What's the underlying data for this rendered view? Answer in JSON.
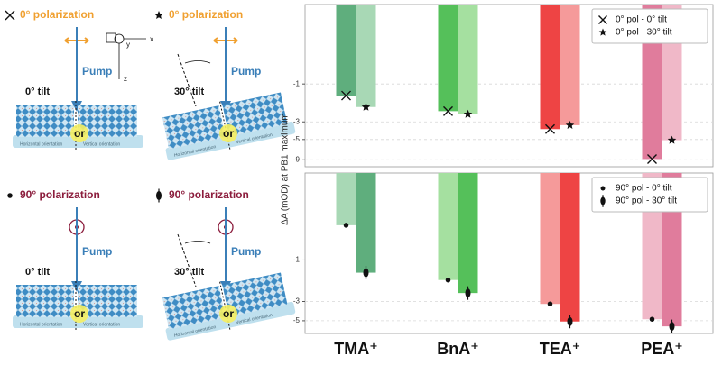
{
  "chart_data": [
    {
      "type": "bar",
      "ylabel": "ΔA (mOD) at PB1 maximum",
      "yscale": "symlog",
      "ylim": [
        -11,
        0
      ],
      "yticks": [
        -1,
        -3,
        -5,
        -9
      ],
      "grid": true,
      "legend": "upper right",
      "series": [
        {
          "name": "0° pol - 0° tilt",
          "marker": "x",
          "colors": [
            "#5fae7d",
            "#55c05a",
            "#ee4444",
            "#e07c9c"
          ],
          "values": [
            -1.4,
            -2.2,
            -3.7,
            -8.8
          ]
        },
        {
          "name": "0° pol - 30° tilt",
          "marker": "star",
          "colors": [
            "#a8d8b5",
            "#a5e0a0",
            "#f59a9a",
            "#f0b8c8"
          ],
          "values": [
            -1.95,
            -2.4,
            -3.3,
            -5.1
          ]
        }
      ]
    },
    {
      "type": "bar",
      "yscale": "symlog",
      "ylim": [
        -7,
        0
      ],
      "yticks": [
        -1,
        -3,
        -5
      ],
      "grid": true,
      "legend": "upper right",
      "categories": [
        "TMA⁺",
        "BnA⁺",
        "TEA⁺",
        "PEA⁺"
      ],
      "series": [
        {
          "name": "90° pol - 0° tilt",
          "marker": "dot",
          "colors": [
            "#a8d8b5",
            "#a5e0a0",
            "#f59a9a",
            "#f0b8c8"
          ],
          "values": [
            -0.6,
            -1.7,
            -3.2,
            -4.8
          ]
        },
        {
          "name": "90° pol - 30° tilt",
          "marker": "diamond",
          "colors": [
            "#5fae7d",
            "#55c05a",
            "#ee4444",
            "#e07c9c"
          ],
          "values": [
            -1.4,
            -2.4,
            -5.1,
            -5.8
          ]
        }
      ]
    }
  ],
  "schematic": {
    "panels": [
      {
        "polarization": "0° polarization",
        "pump": "Pump",
        "tilt": "0° tilt",
        "or": "or",
        "horizontal": "Horizontal orientation",
        "vertical": "Vertical orientation"
      },
      {
        "polarization": "0° polarization",
        "pump": "Pump",
        "tilt": "30° tilt",
        "or": "or",
        "horizontal": "Horizontal orientation",
        "vertical": "Vertical orientation"
      },
      {
        "polarization": "90° polarization",
        "pump": "Pump",
        "tilt": "0° tilt",
        "or": "or",
        "horizontal": "Horizontal orientation",
        "vertical": "Vertical orientation"
      },
      {
        "polarization": "90° polarization",
        "pump": "Pump",
        "tilt": "30° tilt",
        "or": "or",
        "horizontal": "Horizontal orientation",
        "vertical": "Vertical orientation"
      }
    ],
    "axes": [
      "x",
      "y",
      "z"
    ]
  }
}
